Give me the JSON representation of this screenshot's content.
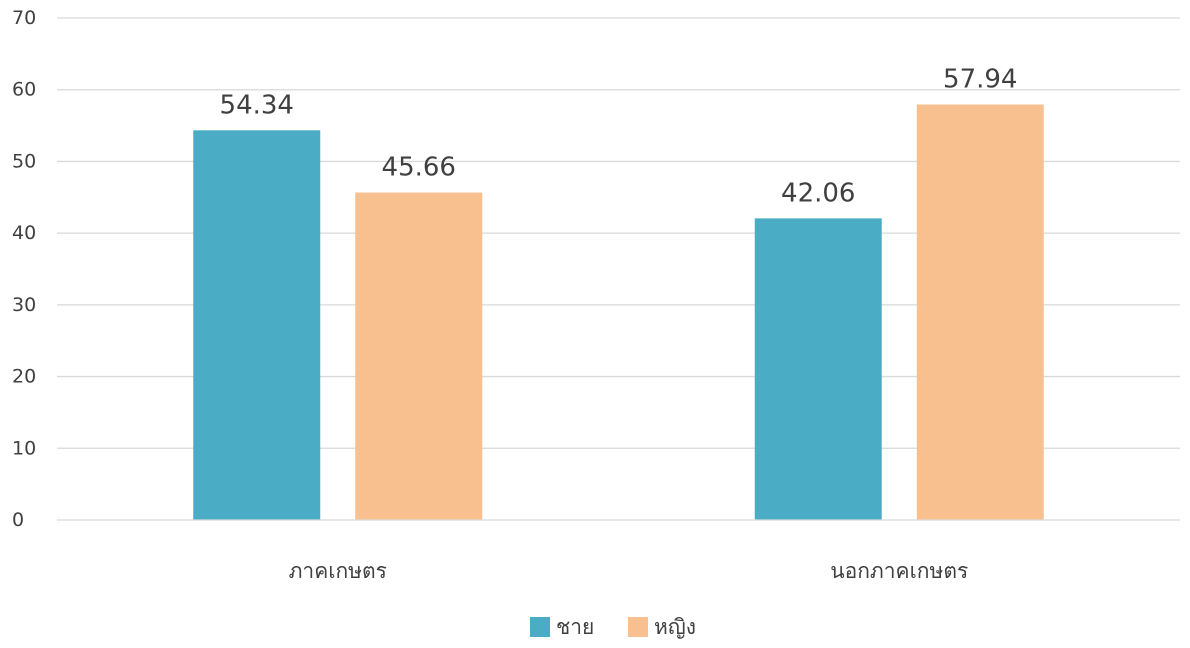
{
  "chart_data": {
    "type": "bar",
    "categories": [
      "ภาคเกษตร",
      "นอกภาคเกษตร"
    ],
    "series": [
      {
        "name": "ชาย",
        "values": [
          54.34,
          42.06
        ],
        "color": "#4bacc6"
      },
      {
        "name": "หญิง",
        "values": [
          45.66,
          57.94
        ],
        "color": "#f9c08f"
      }
    ],
    "data_labels": [
      [
        "54.34",
        "42.06"
      ],
      [
        "45.66",
        "57.94"
      ]
    ],
    "yticks": [
      0,
      10,
      20,
      30,
      40,
      50,
      60,
      70
    ],
    "ylim": [
      0,
      70
    ],
    "title": "",
    "xlabel": "",
    "ylabel": "",
    "grid": true,
    "legend": "bottom-center"
  }
}
